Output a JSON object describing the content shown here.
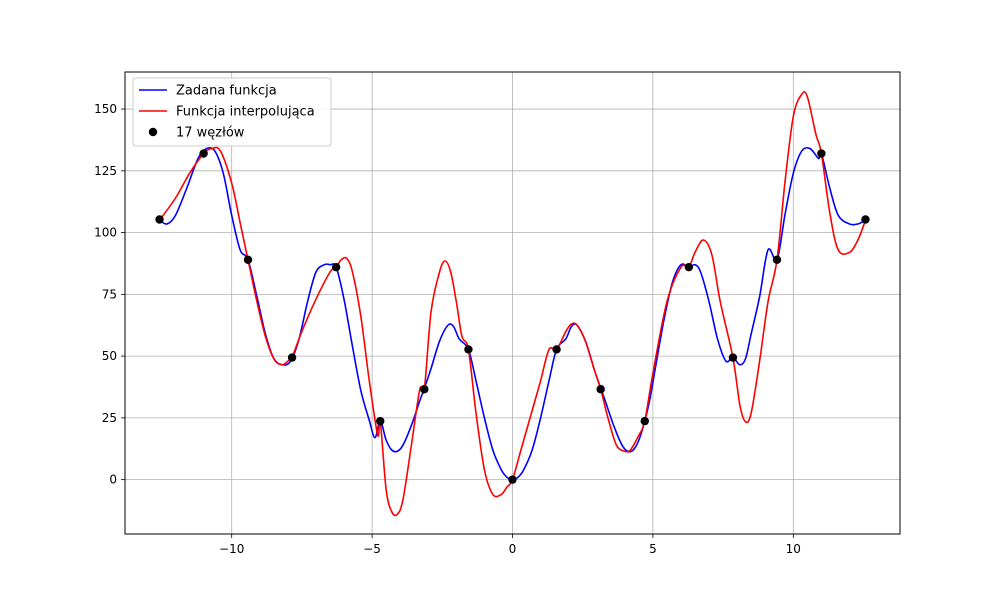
{
  "chart_data": {
    "type": "line",
    "title": "",
    "xlabel": "",
    "ylabel": "",
    "xlim": [
      -13.8,
      13.8
    ],
    "ylim": [
      -22,
      165
    ],
    "xticks": [
      -10,
      -5,
      0,
      5,
      10
    ],
    "yticks": [
      0,
      25,
      50,
      75,
      100,
      125,
      150
    ],
    "xtick_labels": [
      "−10",
      "−5",
      "0",
      "5",
      "10"
    ],
    "ytick_labels": [
      "0",
      "25",
      "50",
      "75",
      "100",
      "125",
      "150"
    ],
    "grid": true,
    "legend_position": "top-left",
    "series": [
      {
        "name": "Zadana funkcja",
        "kind": "line",
        "color": "#0000ff",
        "x": [
          -12.57,
          -12.3,
          -12.0,
          -11.6,
          -11.2,
          -10.9,
          -10.6,
          -10.3,
          -10.0,
          -9.7,
          -9.42,
          -9.1,
          -8.8,
          -8.5,
          -8.2,
          -7.9,
          -7.6,
          -7.3,
          -7.0,
          -6.7,
          -6.5,
          -6.28,
          -6.0,
          -5.7,
          -5.4,
          -5.1,
          -4.9,
          -4.71,
          -4.5,
          -4.3,
          -4.1,
          -3.9,
          -3.6,
          -3.3,
          -3.14,
          -2.9,
          -2.6,
          -2.3,
          -2.1,
          -1.9,
          -1.57,
          -1.3,
          -1.0,
          -0.7,
          -0.4,
          -0.2,
          0.0,
          0.2,
          0.4,
          0.7,
          1.0,
          1.3,
          1.57,
          1.9,
          2.1,
          2.3,
          2.6,
          2.9,
          3.14,
          3.3,
          3.6,
          3.9,
          4.1,
          4.3,
          4.5,
          4.71,
          4.9,
          5.1,
          5.4,
          5.7,
          6.0,
          6.28,
          6.5,
          6.7,
          7.0,
          7.3,
          7.6,
          7.85,
          8.1,
          8.3,
          8.5,
          8.8,
          9.1,
          9.42,
          9.7,
          10.0,
          10.3,
          10.6,
          10.9,
          11.0,
          11.3,
          11.6,
          12.0,
          12.3,
          12.57
        ],
        "y": [
          105,
          103.5,
          107,
          118,
          130,
          134,
          133,
          124,
          107,
          93,
          89,
          74,
          59,
          49,
          46.5,
          48,
          57,
          72,
          84,
          87,
          87,
          86,
          73,
          54,
          36,
          24,
          17,
          23.7,
          16,
          12,
          11.5,
          14,
          22,
          32,
          37,
          45,
          56,
          62.5,
          62,
          57,
          52.7,
          40,
          25,
          12,
          4,
          1,
          0,
          1,
          4,
          12,
          25,
          40,
          52.7,
          57,
          62,
          62.5,
          56,
          45,
          37,
          32,
          22,
          14,
          11.5,
          12,
          16,
          23.7,
          33,
          46,
          65,
          80,
          87,
          86,
          87,
          84,
          72,
          57,
          48,
          49.4,
          46.5,
          49,
          59,
          74,
          93,
          89,
          107,
          124,
          133,
          134,
          130,
          132,
          118,
          107,
          103.5,
          103.5,
          105
        ]
      },
      {
        "name": "Funkcja interpolująca",
        "kind": "line",
        "color": "#ff0000",
        "x": [
          -12.57,
          -12.0,
          -11.5,
          -11.0,
          -10.7,
          -10.4,
          -10.0,
          -9.7,
          -9.42,
          -9.1,
          -8.8,
          -8.5,
          -8.2,
          -7.9,
          -7.85,
          -7.5,
          -7.0,
          -6.5,
          -6.28,
          -6.1,
          -5.9,
          -5.7,
          -5.4,
          -5.1,
          -4.8,
          -4.71,
          -4.5,
          -4.3,
          -4.1,
          -3.9,
          -3.6,
          -3.3,
          -3.14,
          -2.9,
          -2.6,
          -2.4,
          -2.2,
          -2.0,
          -1.8,
          -1.57,
          -1.3,
          -1.0,
          -0.7,
          -0.4,
          -0.2,
          0.0,
          0.3,
          0.7,
          1.0,
          1.3,
          1.57,
          1.9,
          2.1,
          2.3,
          2.6,
          2.9,
          3.14,
          3.4,
          3.7,
          4.0,
          4.2,
          4.5,
          4.71,
          5.0,
          5.5,
          6.0,
          6.28,
          6.5,
          6.8,
          7.1,
          7.4,
          7.85,
          8.1,
          8.3,
          8.5,
          8.8,
          9.1,
          9.42,
          9.7,
          10.0,
          10.3,
          10.5,
          10.8,
          11.0,
          11.3,
          11.6,
          12.0,
          12.3,
          12.57
        ],
        "y": [
          105,
          114,
          124,
          132,
          134,
          133,
          120,
          104,
          89,
          72,
          58,
          49,
          46.5,
          49,
          49.4,
          60,
          73,
          84,
          86,
          89,
          89.5,
          84,
          66,
          40,
          18,
          23.7,
          -4,
          -13,
          -14,
          -8,
          14,
          36.6,
          36.6,
          68,
          84,
          88.5,
          84,
          72,
          58,
          52.7,
          27,
          4,
          -6,
          -6,
          -3,
          0,
          12,
          28,
          40,
          52.7,
          52.7,
          60,
          63,
          62.5,
          56,
          45,
          36.6,
          25,
          14,
          11.5,
          12,
          18,
          23.7,
          43,
          72,
          86,
          86,
          92,
          97,
          91,
          72,
          49.4,
          30,
          23.4,
          27,
          48,
          72,
          89,
          120,
          147,
          156,
          155,
          140,
          132,
          108,
          93,
          92,
          97,
          105
        ]
      },
      {
        "name": "17 węzłów",
        "kind": "scatter",
        "color": "#000000",
        "x": [
          -12.57,
          -11.0,
          -9.42,
          -7.85,
          -6.28,
          -4.71,
          -3.14,
          -1.57,
          0.0,
          1.57,
          3.14,
          4.71,
          6.28,
          7.85,
          9.42,
          11.0,
          12.57
        ],
        "y": [
          105.3,
          132.0,
          89.0,
          49.4,
          86.0,
          23.7,
          36.6,
          52.7,
          0.0,
          52.7,
          36.6,
          23.7,
          86.0,
          49.4,
          89.0,
          132.0,
          105.3
        ]
      }
    ]
  }
}
